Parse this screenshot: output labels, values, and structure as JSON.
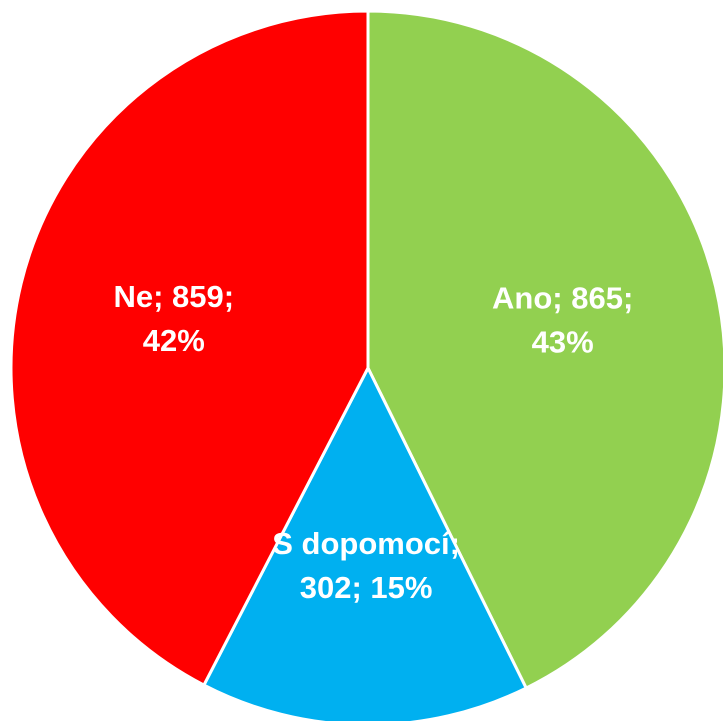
{
  "chart_data": {
    "type": "pie",
    "categories": [
      "Ano",
      "S dopomocí",
      "Ne"
    ],
    "values": [
      865,
      302,
      859
    ],
    "value_labels": [
      [
        "Ano; 865;",
        "43%"
      ],
      [
        "S dopomocí;",
        "302; 15%"
      ],
      [
        "Ne; 859;",
        "42%"
      ]
    ],
    "colors": [
      "#92d050",
      "#00b0f0",
      "#ff0000"
    ]
  }
}
